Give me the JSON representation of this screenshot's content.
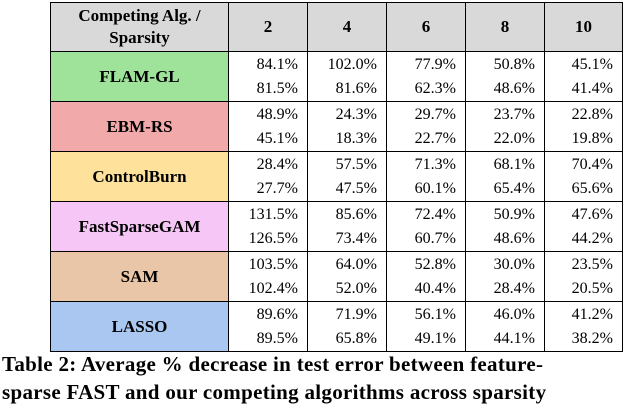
{
  "table": {
    "corner": [
      "Competing Alg. /",
      "Sparsity"
    ],
    "columns": [
      "2",
      "4",
      "6",
      "8",
      "10"
    ],
    "rows": [
      {
        "name": "FLAM-GL",
        "color": "#9fe39b",
        "values": [
          [
            "84.1%",
            "81.5%"
          ],
          [
            "102.0%",
            "81.6%"
          ],
          [
            "77.9%",
            "62.3%"
          ],
          [
            "50.8%",
            "48.6%"
          ],
          [
            "45.1%",
            "41.4%"
          ]
        ]
      },
      {
        "name": "EBM-RS",
        "color": "#f1a9a9",
        "values": [
          [
            "48.9%",
            "45.1%"
          ],
          [
            "24.3%",
            "18.3%"
          ],
          [
            "29.7%",
            "22.7%"
          ],
          [
            "23.7%",
            "22.0%"
          ],
          [
            "22.8%",
            "19.8%"
          ]
        ]
      },
      {
        "name": "ControlBurn",
        "color": "#fee29b",
        "values": [
          [
            "28.4%",
            "27.7%"
          ],
          [
            "57.5%",
            "47.5%"
          ],
          [
            "71.3%",
            "60.1%"
          ],
          [
            "68.1%",
            "65.4%"
          ],
          [
            "70.4%",
            "65.6%"
          ]
        ]
      },
      {
        "name": "FastSparseGAM",
        "color": "#f6c7f6",
        "values": [
          [
            "131.5%",
            "126.5%"
          ],
          [
            "85.6%",
            "73.4%"
          ],
          [
            "72.4%",
            "60.7%"
          ],
          [
            "50.9%",
            "48.6%"
          ],
          [
            "47.6%",
            "44.2%"
          ]
        ]
      },
      {
        "name": "SAM",
        "color": "#e9c6a8",
        "values": [
          [
            "103.5%",
            "102.4%"
          ],
          [
            "64.0%",
            "52.0%"
          ],
          [
            "52.8%",
            "40.4%"
          ],
          [
            "30.0%",
            "28.4%"
          ],
          [
            "23.5%",
            "20.5%"
          ]
        ]
      },
      {
        "name": "LASSO",
        "color": "#a9c7f1",
        "values": [
          [
            "89.6%",
            "89.5%"
          ],
          [
            "71.9%",
            "65.8%"
          ],
          [
            "56.1%",
            "49.1%"
          ],
          [
            "46.0%",
            "44.1%"
          ],
          [
            "41.2%",
            "38.2%"
          ]
        ]
      }
    ]
  },
  "caption": [
    "Table 2: Average % decrease in test error between feature-",
    "sparse FAST and our competing algorithms across sparsity"
  ]
}
